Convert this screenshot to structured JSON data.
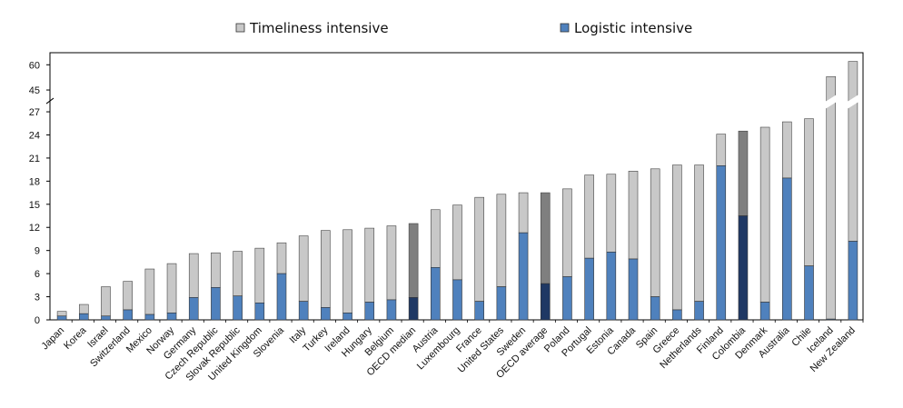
{
  "chart_data": {
    "type": "bar",
    "stacked": true,
    "title": "",
    "xlabel": "",
    "ylabel": "",
    "axis_break": {
      "between": [
        27,
        45
      ]
    },
    "y_ticks": [
      0,
      3,
      6,
      9,
      12,
      15,
      18,
      21,
      24,
      27,
      45,
      60
    ],
    "legend": {
      "placement": "top-center"
    },
    "grid": false,
    "categories": [
      "Japan",
      "Korea",
      "Israel",
      "Switzerland",
      "Mexico",
      "Norway",
      "Germany",
      "Czech Republic",
      "Slovak Republic",
      "United Kingdom",
      "Slovenia",
      "Italy",
      "Turkey",
      "Ireland",
      "Hungary",
      "Belgium",
      "OECD median",
      "Austria",
      "Luxembourg",
      "France",
      "United States",
      "Sweden",
      "OECD average",
      "Poland",
      "Portugal",
      "Estonia",
      "Canada",
      "Spain",
      "Greece",
      "Netherlands",
      "Finland",
      "Colombia",
      "Denmark",
      "Australia",
      "Chile",
      "Iceland",
      "New Zealand"
    ],
    "series": [
      {
        "name": "Logistic intensive",
        "color": "#4f81bd",
        "values": [
          0.5,
          0.8,
          0.5,
          1.3,
          0.7,
          0.9,
          2.9,
          4.2,
          3.1,
          2.2,
          6.0,
          2.4,
          1.6,
          0.9,
          2.3,
          2.6,
          2.9,
          6.8,
          5.2,
          2.4,
          4.3,
          11.3,
          4.7,
          5.6,
          8.0,
          8.8,
          7.9,
          3.0,
          1.3,
          2.4,
          20.0,
          13.5,
          2.3,
          18.4,
          7.0,
          0.1,
          10.2
        ]
      },
      {
        "name": "Timeliness intensive",
        "color": "#c8c8c8",
        "values": [
          0.6,
          1.2,
          3.8,
          3.7,
          5.9,
          6.4,
          5.7,
          4.5,
          5.8,
          7.1,
          4.0,
          8.5,
          10.0,
          10.8,
          9.6,
          9.6,
          9.6,
          7.5,
          9.7,
          13.5,
          12.0,
          5.2,
          11.8,
          11.4,
          10.8,
          10.1,
          11.4,
          16.6,
          18.8,
          17.7,
          4.1,
          11.0,
          22.7,
          7.3,
          19.1,
          52.9,
          51.8
        ]
      }
    ],
    "highlight": {
      "OECD median": {
        "Logistic intensive": "#1f3864",
        "Timeliness intensive": "#7f7f7f"
      },
      "OECD average": {
        "Logistic intensive": "#1f3864",
        "Timeliness intensive": "#7f7f7f"
      },
      "Colombia": {
        "Logistic intensive": "#1f3864",
        "Timeliness intensive": "#7f7f7f"
      }
    }
  }
}
